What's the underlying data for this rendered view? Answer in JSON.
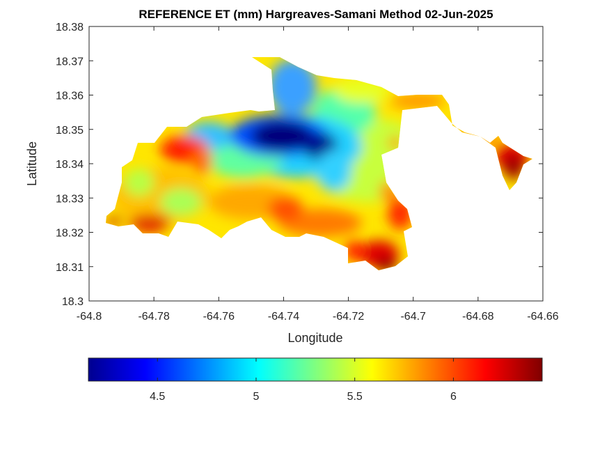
{
  "chart_data": {
    "type": "heatmap",
    "title": "REFERENCE ET (mm) Hargreaves-Samani Method  02-Jun-2025",
    "xlabel": "Longitude",
    "ylabel": "Latitude",
    "xlim": [
      -64.8,
      -64.66
    ],
    "ylim": [
      18.3,
      18.38
    ],
    "x_ticks": [
      "-64.8",
      "-64.78",
      "-64.76",
      "-64.74",
      "-64.72",
      "-64.7",
      "-64.68",
      "-64.66"
    ],
    "y_ticks": [
      "18.3",
      "18.31",
      "18.32",
      "18.33",
      "18.34",
      "18.35",
      "18.36",
      "18.37",
      "18.38"
    ],
    "colorbar": {
      "colormap": "jet",
      "range": [
        4.15,
        6.45
      ],
      "ticks": [
        "4.5",
        "5",
        "5.5",
        "6"
      ],
      "placement": "bottom"
    },
    "grid": false,
    "description_hint": "Filled contour map of reference evapotranspiration over an island; low values (~4.2 mm) in north-central highlands, high values (~6.3 mm) along southern and eastern coasts."
  }
}
